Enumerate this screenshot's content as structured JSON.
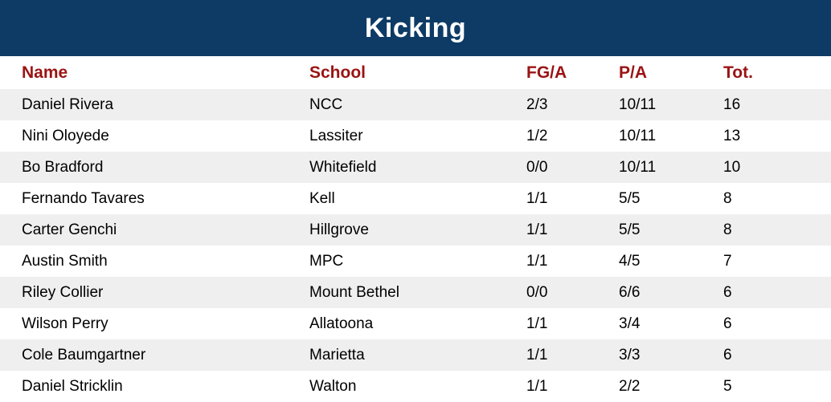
{
  "title": "Kicking",
  "colors": {
    "header_bg": "#0d3b66",
    "header_text": "#ffffff",
    "column_header_text": "#9b1313",
    "row_alt_bg": "#efefef",
    "row_text": "#000000"
  },
  "table": {
    "columns": [
      "Name",
      "School",
      "FG/A",
      "P/A",
      "Tot."
    ],
    "rows": [
      [
        "Daniel Rivera",
        "NCC",
        "2/3",
        "10/11",
        "16"
      ],
      [
        "Nini Oloyede",
        "Lassiter",
        "1/2",
        "10/11",
        "13"
      ],
      [
        "Bo Bradford",
        "Whitefield",
        "0/0",
        "10/11",
        "10"
      ],
      [
        "Fernando Tavares",
        "Kell",
        "1/1",
        "5/5",
        "8"
      ],
      [
        "Carter Genchi",
        "Hillgrove",
        "1/1",
        "5/5",
        "8"
      ],
      [
        "Austin Smith",
        "MPC",
        "1/1",
        "4/5",
        "7"
      ],
      [
        "Riley Collier",
        "Mount Bethel",
        "0/0",
        "6/6",
        "6"
      ],
      [
        "Wilson Perry",
        "Allatoona",
        "1/1",
        "3/4",
        "6"
      ],
      [
        "Cole Baumgartner",
        "Marietta",
        "1/1",
        "3/3",
        "6"
      ],
      [
        "Daniel Stricklin",
        "Walton",
        "1/1",
        "2/2",
        "5"
      ]
    ]
  },
  "chart_data": {
    "type": "table",
    "title": "Kicking",
    "columns": [
      "Name",
      "School",
      "FG/A",
      "P/A",
      "Tot."
    ],
    "rows": [
      [
        "Daniel Rivera",
        "NCC",
        "2/3",
        "10/11",
        "16"
      ],
      [
        "Nini Oloyede",
        "Lassiter",
        "1/2",
        "10/11",
        "13"
      ],
      [
        "Bo Bradford",
        "Whitefield",
        "0/0",
        "10/11",
        "10"
      ],
      [
        "Fernando Tavares",
        "Kell",
        "1/1",
        "5/5",
        "8"
      ],
      [
        "Carter Genchi",
        "Hillgrove",
        "1/1",
        "5/5",
        "8"
      ],
      [
        "Austin Smith",
        "MPC",
        "1/1",
        "4/5",
        "7"
      ],
      [
        "Riley Collier",
        "Mount Bethel",
        "0/0",
        "6/6",
        "6"
      ],
      [
        "Wilson Perry",
        "Allatoona",
        "1/1",
        "3/4",
        "6"
      ],
      [
        "Cole Baumgartner",
        "Marietta",
        "1/1",
        "3/3",
        "6"
      ],
      [
        "Daniel Stricklin",
        "Walton",
        "1/1",
        "2/2",
        "5"
      ]
    ]
  }
}
